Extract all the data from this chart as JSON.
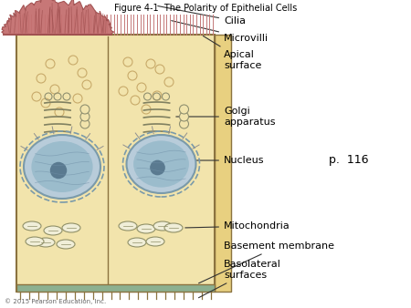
{
  "title": "Figure 4-1  The Polarity of Epithelial Cells",
  "title_fontsize": 7,
  "copyright": "© 2015 Pearson Education, Inc.",
  "page_ref": "p.  116",
  "bg_color": "#FFFFFF",
  "cell_fill": "#F2E4AC",
  "cell_border": "#C8AA6A",
  "cell_border_dark": "#8B7340",
  "nucleus_fill_outer": "#B8CCDA",
  "nucleus_fill_inner": "#9BBCCC",
  "nucleus_border": "#7A9AAA",
  "nucleolus_color": "#5A7A90",
  "cilia_fill": "#C47070",
  "cilia_line": "#A05050",
  "microvilli_color": "#C47878",
  "golgi_color": "#E0D090",
  "golgi_border": "#A09050",
  "mito_fill": "#F0EED8",
  "mito_border": "#909068",
  "basement_fill": "#8CB090",
  "side_fill": "#E8D080",
  "label_fontsize": 8,
  "label_color": "#000000"
}
